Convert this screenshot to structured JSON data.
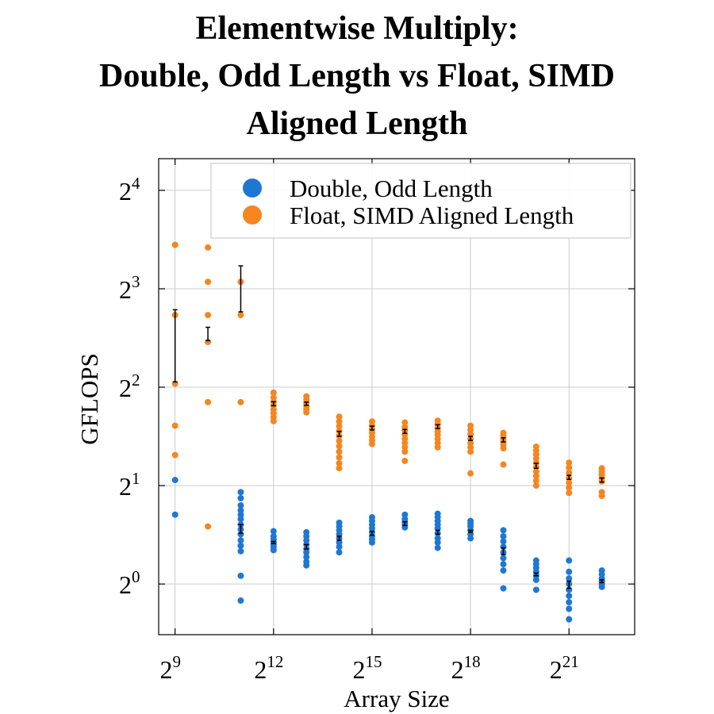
{
  "chart_data": {
    "type": "scatter",
    "title_lines": [
      "Elementwise Multiply:",
      "Double, Odd Length vs Float, SIMD",
      "Aligned Length"
    ],
    "xlabel": "Array Size",
    "ylabel": "GFLOPS",
    "x_scale": "log2",
    "y_scale": "log2",
    "xlim": [
      362,
      8388608
    ],
    "ylim": [
      0.7,
      20
    ],
    "x_ticks": [
      {
        "base": "2",
        "exp": "9",
        "value": 512
      },
      {
        "base": "2",
        "exp": "12",
        "value": 4096
      },
      {
        "base": "2",
        "exp": "15",
        "value": 32768
      },
      {
        "base": "2",
        "exp": "18",
        "value": 262144
      },
      {
        "base": "2",
        "exp": "21",
        "value": 2097152
      }
    ],
    "y_ticks": [
      {
        "base": "2",
        "exp": "0",
        "value": 1
      },
      {
        "base": "2",
        "exp": "1",
        "value": 2
      },
      {
        "base": "2",
        "exp": "2",
        "value": 4
      },
      {
        "base": "2",
        "exp": "3",
        "value": 8
      },
      {
        "base": "2",
        "exp": "4",
        "value": 16
      }
    ],
    "grid": true,
    "legend_position": "top-right",
    "series": [
      {
        "name": "Double, Odd Length",
        "color": "#1f77d4",
        "points": [
          {
            "x": 512,
            "y": [
              2.08,
              1.63
            ]
          },
          {
            "x": 2048,
            "y": [
              1.91,
              1.83,
              1.74,
              1.68,
              1.63,
              1.58,
              1.52,
              1.47,
              1.42,
              1.36,
              1.31,
              1.26,
              1.06,
              0.89
            ]
          },
          {
            "x": 4096,
            "y": [
              1.45,
              1.4,
              1.37,
              1.34,
              1.32,
              1.3,
              1.27
            ]
          },
          {
            "x": 8192,
            "y": [
              1.44,
              1.4,
              1.36,
              1.32,
              1.28,
              1.25,
              1.21,
              1.17,
              1.14
            ]
          },
          {
            "x": 16384,
            "y": [
              1.54,
              1.5,
              1.46,
              1.42,
              1.38,
              1.34,
              1.3,
              1.25
            ]
          },
          {
            "x": 32768,
            "y": [
              1.6,
              1.56,
              1.52,
              1.48,
              1.44,
              1.4,
              1.37,
              1.34
            ]
          },
          {
            "x": 65536,
            "y": [
              1.63,
              1.58,
              1.55,
              1.52,
              1.49
            ]
          },
          {
            "x": 131072,
            "y": [
              1.64,
              1.6,
              1.56,
              1.52,
              1.48,
              1.43,
              1.38,
              1.34,
              1.29
            ]
          },
          {
            "x": 262144,
            "y": [
              1.56,
              1.53,
              1.5,
              1.46,
              1.42,
              1.38
            ]
          },
          {
            "x": 524288,
            "y": [
              1.46,
              1.4,
              1.35,
              1.3,
              1.25,
              1.2,
              1.15,
              1.1,
              0.97
            ]
          },
          {
            "x": 1048576,
            "y": [
              1.18,
              1.15,
              1.12,
              1.09,
              1.06,
              1.03,
              0.96
            ]
          },
          {
            "x": 2097152,
            "y": [
              1.18,
              1.09,
              1.04,
              1.0,
              0.96,
              0.92,
              0.88,
              0.84,
              0.78
            ]
          },
          {
            "x": 4194304,
            "y": [
              1.1,
              1.07,
              1.04,
              1.02,
              1.0,
              0.98
            ]
          }
        ],
        "mean_ci": [
          {
            "x": 2048,
            "mean": 1.48,
            "lo": 1.43,
            "hi": 1.52
          },
          {
            "x": 4096,
            "mean": 1.34,
            "lo": 1.33,
            "hi": 1.35
          },
          {
            "x": 8192,
            "mean": 1.3,
            "lo": 1.28,
            "hi": 1.32
          },
          {
            "x": 16384,
            "mean": 1.38,
            "lo": 1.36,
            "hi": 1.4
          },
          {
            "x": 32768,
            "mean": 1.43,
            "lo": 1.41,
            "hi": 1.45
          },
          {
            "x": 65536,
            "mean": 1.53,
            "lo": 1.51,
            "hi": 1.55
          },
          {
            "x": 131072,
            "mean": 1.44,
            "lo": 1.42,
            "hi": 1.46
          },
          {
            "x": 262144,
            "mean": 1.45,
            "lo": 1.44,
            "hi": 1.46
          },
          {
            "x": 524288,
            "mean": 1.26,
            "lo": 1.23,
            "hi": 1.29
          },
          {
            "x": 1048576,
            "mean": 1.07,
            "lo": 1.06,
            "hi": 1.08
          },
          {
            "x": 2097152,
            "mean": 1.0,
            "lo": 0.97,
            "hi": 1.02
          },
          {
            "x": 4194304,
            "mean": 1.02,
            "lo": 1.01,
            "hi": 1.03
          }
        ]
      },
      {
        "name": "Float, SIMD Aligned Length",
        "color": "#f5861f",
        "points": [
          {
            "x": 512,
            "y": [
              10.9,
              6.65,
              4.1,
              3.05,
              2.48
            ]
          },
          {
            "x": 1024,
            "y": [
              10.7,
              8.4,
              6.65,
              5.5,
              3.6,
              1.5
            ]
          },
          {
            "x": 2048,
            "y": [
              8.4,
              6.65,
              3.6
            ]
          },
          {
            "x": 4096,
            "y": [
              3.85,
              3.72,
              3.61,
              3.52,
              3.42,
              3.33,
              3.24,
              3.15
            ]
          },
          {
            "x": 8192,
            "y": [
              3.75,
              3.66,
              3.58,
              3.5,
              3.42,
              3.35
            ]
          },
          {
            "x": 16384,
            "y": [
              3.25,
              3.14,
              3.04,
              2.94,
              2.84,
              2.74,
              2.64,
              2.54,
              2.44,
              2.34,
              2.26
            ]
          },
          {
            "x": 32768,
            "y": [
              3.14,
              3.05,
              2.98,
              2.9,
              2.82,
              2.75,
              2.68
            ]
          },
          {
            "x": 65536,
            "y": [
              3.12,
              3.02,
              2.94,
              2.86,
              2.78,
              2.7,
              2.62,
              2.54,
              2.38
            ]
          },
          {
            "x": 131072,
            "y": [
              3.16,
              3.08,
              3.0,
              2.93,
              2.86,
              2.78,
              2.7,
              2.62
            ]
          },
          {
            "x": 262144,
            "y": [
              3.05,
              2.96,
              2.87,
              2.78,
              2.7,
              2.62,
              2.54,
              2.18
            ]
          },
          {
            "x": 524288,
            "y": [
              2.9,
              2.84,
              2.78,
              2.72,
              2.66,
              2.6,
              2.32
            ]
          },
          {
            "x": 1048576,
            "y": [
              2.63,
              2.56,
              2.49,
              2.42,
              2.35,
              2.28,
              2.21,
              2.14,
              2.07,
              2.0
            ]
          },
          {
            "x": 2097152,
            "y": [
              2.35,
              2.27,
              2.19,
              2.11,
              2.04,
              1.97,
              1.9
            ]
          },
          {
            "x": 4194304,
            "y": [
              2.26,
              2.21,
              2.16,
              2.11,
              2.06,
              1.91,
              1.86
            ]
          }
        ],
        "mean_ci": [
          {
            "x": 512,
            "mean": 4.85,
            "lo": 4.15,
            "hi": 6.9
          },
          {
            "x": 1024,
            "mean": 5.85,
            "lo": 5.55,
            "hi": 6.1
          },
          {
            "x": 2048,
            "mean": 7.4,
            "lo": 6.8,
            "hi": 9.4
          },
          {
            "x": 4096,
            "mean": 3.56,
            "lo": 3.51,
            "hi": 3.61
          },
          {
            "x": 8192,
            "mean": 3.56,
            "lo": 3.52,
            "hi": 3.6
          },
          {
            "x": 16384,
            "mean": 2.88,
            "lo": 2.83,
            "hi": 2.93
          },
          {
            "x": 32768,
            "mean": 3.0,
            "lo": 2.96,
            "hi": 3.04
          },
          {
            "x": 65536,
            "mean": 2.93,
            "lo": 2.89,
            "hi": 2.97
          },
          {
            "x": 131072,
            "mean": 3.03,
            "lo": 2.99,
            "hi": 3.07
          },
          {
            "x": 262144,
            "mean": 2.79,
            "lo": 2.75,
            "hi": 2.83
          },
          {
            "x": 524288,
            "mean": 2.76,
            "lo": 2.72,
            "hi": 2.8
          },
          {
            "x": 1048576,
            "mean": 2.3,
            "lo": 2.26,
            "hi": 2.34
          },
          {
            "x": 2097152,
            "mean": 2.12,
            "lo": 2.09,
            "hi": 2.15
          },
          {
            "x": 4194304,
            "mean": 2.08,
            "lo": 2.05,
            "hi": 2.11
          }
        ]
      }
    ]
  }
}
